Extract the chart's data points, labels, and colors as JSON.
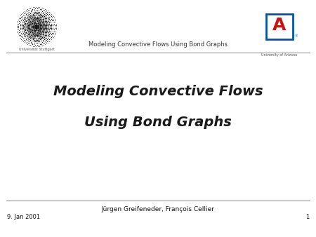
{
  "title_line1": "Modeling Convective Flows",
  "title_line2": "Using Bond Graphs",
  "header_title": "Modeling Convective Flows Using Bond Graphs",
  "left_logo_label": "Universität Stuttgart",
  "right_logo_label": "University of Arizona",
  "author": "Jürgen Greifeneder, François Cellier",
  "date": "9. Jan 2001",
  "page_number": "1",
  "bg_color": "#ffffff",
  "title_color": "#1a1a1a",
  "header_text_color": "#333333",
  "footer_text_color": "#111111",
  "line_color": "#888888",
  "title_fontsize": 14,
  "header_fontsize": 6,
  "author_fontsize": 6.5,
  "footer_fontsize": 6,
  "page_num_fontsize": 6,
  "logo_label_fontsize": 3.5
}
